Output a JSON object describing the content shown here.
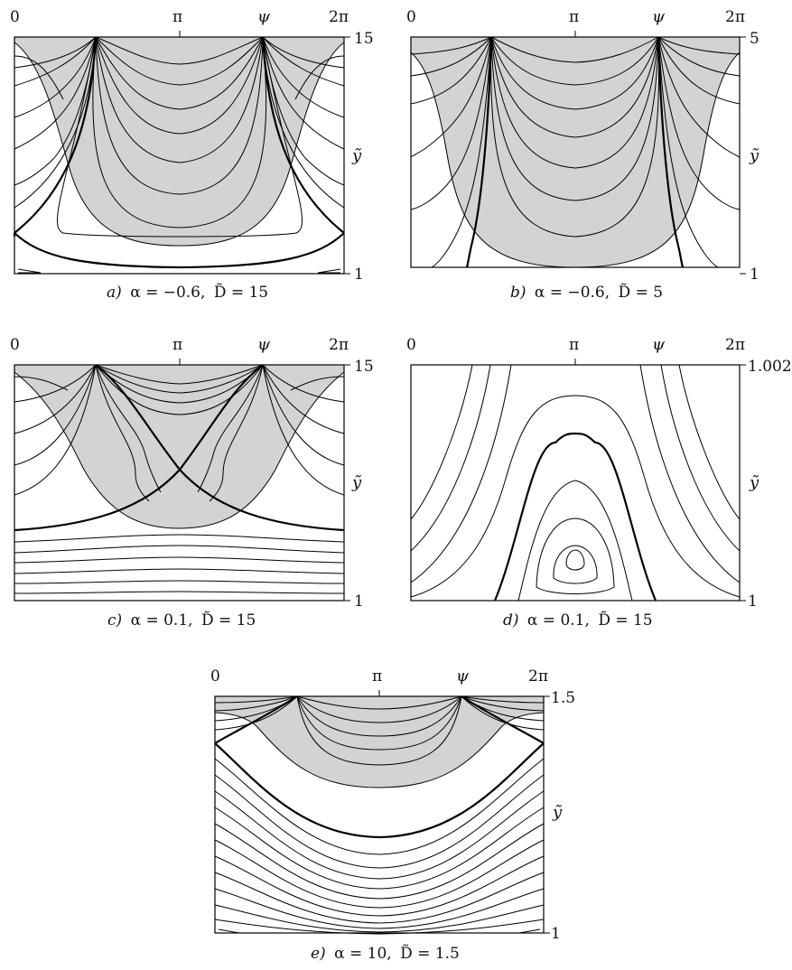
{
  "panels": [
    {
      "id": "a",
      "x_ticks": [
        "0",
        "π",
        "2π"
      ],
      "x_var": "ψ",
      "y_var": "ỹ",
      "y_top": "15",
      "y_bottom": "1",
      "caption_letter": "a)",
      "caption_alpha": "α = −0.6,",
      "caption_D": "D̃ = 15"
    },
    {
      "id": "b",
      "x_ticks": [
        "0",
        "π",
        "2π"
      ],
      "x_var": "ψ",
      "y_var": "ỹ",
      "y_top": "5",
      "y_bottom": "1",
      "caption_letter": "b)",
      "caption_alpha": "α = −0.6,",
      "caption_D": "D̃ = 5"
    },
    {
      "id": "c",
      "x_ticks": [
        "0",
        "π",
        "2π"
      ],
      "x_var": "ψ",
      "y_var": "ỹ",
      "y_top": "15",
      "y_bottom": "1",
      "caption_letter": "c)",
      "caption_alpha": "α = 0.1,",
      "caption_D": "D̃ = 15"
    },
    {
      "id": "d",
      "x_ticks": [
        "0",
        "π",
        "2π"
      ],
      "x_var": "ψ",
      "y_var": "ỹ",
      "y_top": "1.002",
      "y_bottom": "1",
      "caption_letter": "d)",
      "caption_alpha": "α = 0.1,",
      "caption_D": "D̃ = 15"
    },
    {
      "id": "e",
      "x_ticks": [
        "0",
        "π",
        "2π"
      ],
      "x_var": "ψ",
      "y_var": "ỹ",
      "y_top": "1.5",
      "y_bottom": "1",
      "caption_letter": "e)",
      "caption_alpha": "α = 10,",
      "caption_D": "D̃ = 1.5"
    }
  ],
  "colors": {
    "shaded_region": "#d3d3d3",
    "curves": "#000000",
    "background": "#ffffff"
  }
}
